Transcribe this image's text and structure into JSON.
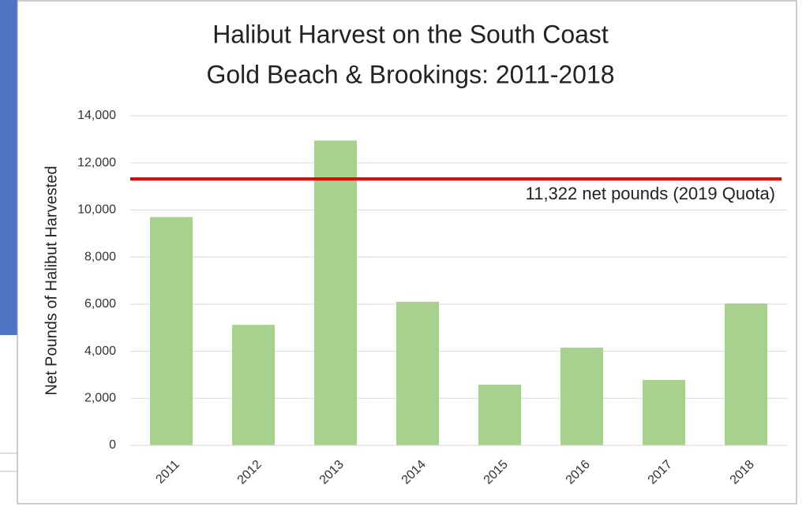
{
  "chart_data": {
    "type": "bar",
    "title": [
      "Halibut Harvest on the South Coast",
      "Gold Beach & Brookings: 2011-2018"
    ],
    "y_label": "Net Pounds of Halibut Harvested",
    "categories": [
      "2011",
      "2012",
      "2013",
      "2014",
      "2015",
      "2016",
      "2017",
      "2018"
    ],
    "values": [
      9700,
      5120,
      12950,
      6100,
      2580,
      4150,
      2780,
      6030
    ],
    "color": "#a9d18e",
    "ylim": [
      0,
      14000
    ],
    "yticks": [
      0,
      {
        "value": 2000,
        "label": "2,000"
      },
      {
        "value": 4000,
        "label": "4,000"
      },
      {
        "value": 6000,
        "label": "6,000"
      },
      {
        "value": 8000,
        "label": "8,000"
      },
      {
        "value": 10000,
        "label": "10,000"
      },
      {
        "value": 12000,
        "label": "12,000"
      },
      {
        "value": 14000,
        "label": "14,000"
      }
    ],
    "grid": true,
    "reference_line": {
      "value": 11322,
      "label": "11,322 net pounds (2019 Quota)",
      "color": "#e60000"
    }
  }
}
